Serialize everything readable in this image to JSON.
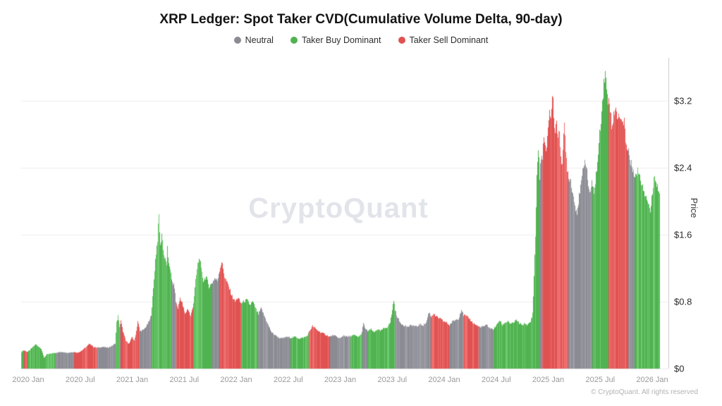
{
  "title": "XRP Ledger: Spot Taker CVD(Cumulative Volume Delta, 90-day)",
  "watermark": "CryptoQuant",
  "copyright": "© CryptoQuant. All rights reserved",
  "legend": [
    {
      "label": "Neutral",
      "color": "#8b8b93"
    },
    {
      "label": "Taker Buy Dominant",
      "color": "#50b250"
    },
    {
      "label": "Taker Sell Dominant",
      "color": "#e05252"
    }
  ],
  "y_axis": {
    "label": "Price",
    "ticks": [
      "$3.2",
      "$2.4",
      "$1.6",
      "$0.8",
      "$0"
    ],
    "tick_values": [
      3.2,
      2.4,
      1.6,
      0.8,
      0
    ]
  },
  "x_axis": {
    "ticks": [
      "2020 Jan",
      "2020 Jul",
      "2021 Jan",
      "2021 Jul",
      "2022 Jan",
      "2022 Jul",
      "2023 Jan",
      "2023 Jul",
      "2024 Jan",
      "2024 Jul",
      "2025 Jan",
      "2025 Jul",
      "2026 Jan"
    ]
  },
  "chart_data": {
    "type": "bar",
    "title": "XRP Ledger: Spot Taker CVD(Cumulative Volume Delta, 90-day)",
    "xlabel": "",
    "ylabel": "Price",
    "ylim": [
      0,
      3.7
    ],
    "x_range_decimal_years": [
      2019.93,
      2026.07
    ],
    "grid": true,
    "legend_position": "top-center",
    "unit": "USD",
    "regime_colors": {
      "N": {
        "base": "#8b8b93",
        "light": "#9d9da5"
      },
      "B": {
        "base": "#50b250",
        "light": "#6fca6f"
      },
      "S": {
        "base": "#e05252",
        "light": "#ee6f6f"
      }
    },
    "regime_legend": {
      "N": "Neutral",
      "B": "Taker Buy Dominant",
      "S": "Taker Sell Dominant"
    },
    "samples_format": [
      "time_decimal_year",
      "price_usd",
      "regime"
    ],
    "samples": [
      [
        2019.932,
        0.2,
        "B"
      ],
      [
        2019.953,
        0.22,
        "S"
      ],
      [
        2019.973,
        0.21,
        "S"
      ],
      [
        2019.993,
        0.2,
        "B"
      ],
      [
        2020.027,
        0.24,
        "B"
      ],
      [
        2020.068,
        0.29,
        "B"
      ],
      [
        2020.102,
        0.26,
        "B"
      ],
      [
        2020.122,
        0.24,
        "B"
      ],
      [
        2020.149,
        0.13,
        "B"
      ],
      [
        2020.176,
        0.17,
        "B"
      ],
      [
        2020.217,
        0.18,
        "B"
      ],
      [
        2020.258,
        0.19,
        "N"
      ],
      [
        2020.325,
        0.2,
        "N"
      ],
      [
        2020.38,
        0.19,
        "N"
      ],
      [
        2020.434,
        0.2,
        "S"
      ],
      [
        2020.475,
        0.19,
        "S"
      ],
      [
        2020.515,
        0.22,
        "S"
      ],
      [
        2020.556,
        0.26,
        "S"
      ],
      [
        2020.59,
        0.3,
        "S"
      ],
      [
        2020.624,
        0.26,
        "S"
      ],
      [
        2020.658,
        0.25,
        "N"
      ],
      [
        2020.712,
        0.26,
        "N"
      ],
      [
        2020.759,
        0.25,
        "N"
      ],
      [
        2020.8,
        0.27,
        "N"
      ],
      [
        2020.834,
        0.3,
        "B"
      ],
      [
        2020.847,
        0.55,
        "B"
      ],
      [
        2020.861,
        0.63,
        "B"
      ],
      [
        2020.875,
        0.5,
        "N"
      ],
      [
        2020.888,
        0.57,
        "S"
      ],
      [
        2020.908,
        0.45,
        "S"
      ],
      [
        2020.936,
        0.33,
        "S"
      ],
      [
        2020.969,
        0.3,
        "S"
      ],
      [
        2020.997,
        0.38,
        "S"
      ],
      [
        2021.017,
        0.33,
        "S"
      ],
      [
        2021.037,
        0.45,
        "S"
      ],
      [
        2021.051,
        0.57,
        "S"
      ],
      [
        2021.071,
        0.45,
        "N"
      ],
      [
        2021.105,
        0.46,
        "N"
      ],
      [
        2021.139,
        0.52,
        "N"
      ],
      [
        2021.166,
        0.58,
        "N"
      ],
      [
        2021.18,
        0.65,
        "B"
      ],
      [
        2021.2,
        0.95,
        "B"
      ],
      [
        2021.22,
        1.3,
        "B"
      ],
      [
        2021.241,
        1.55,
        "B"
      ],
      [
        2021.254,
        1.84,
        "B"
      ],
      [
        2021.268,
        1.45,
        "B"
      ],
      [
        2021.281,
        1.62,
        "B"
      ],
      [
        2021.302,
        1.35,
        "B"
      ],
      [
        2021.329,
        1.25,
        "B"
      ],
      [
        2021.336,
        1.45,
        "S"
      ],
      [
        2021.342,
        1.3,
        "B"
      ],
      [
        2021.363,
        1.2,
        "B"
      ],
      [
        2021.376,
        1.05,
        "N"
      ],
      [
        2021.403,
        0.98,
        "N"
      ],
      [
        2021.417,
        0.8,
        "S"
      ],
      [
        2021.437,
        0.72,
        "S"
      ],
      [
        2021.458,
        0.85,
        "S"
      ],
      [
        2021.478,
        0.78,
        "S"
      ],
      [
        2021.505,
        0.65,
        "S"
      ],
      [
        2021.532,
        0.72,
        "S"
      ],
      [
        2021.559,
        0.62,
        "S"
      ],
      [
        2021.586,
        0.78,
        "B"
      ],
      [
        2021.607,
        1.05,
        "B"
      ],
      [
        2021.627,
        1.25,
        "B"
      ],
      [
        2021.647,
        1.33,
        "B"
      ],
      [
        2021.661,
        1.18,
        "B"
      ],
      [
        2021.681,
        1.05,
        "B"
      ],
      [
        2021.708,
        1.1,
        "B"
      ],
      [
        2021.736,
        0.98,
        "B"
      ],
      [
        2021.763,
        1.02,
        "N"
      ],
      [
        2021.79,
        1.08,
        "N"
      ],
      [
        2021.817,
        1.05,
        "N"
      ],
      [
        2021.837,
        1.18,
        "S"
      ],
      [
        2021.858,
        1.28,
        "S"
      ],
      [
        2021.885,
        1.1,
        "S"
      ],
      [
        2021.919,
        1.0,
        "S"
      ],
      [
        2021.953,
        0.88,
        "S"
      ],
      [
        2021.986,
        0.8,
        "S"
      ],
      [
        2022.014,
        0.85,
        "S"
      ],
      [
        2022.041,
        0.78,
        "B"
      ],
      [
        2022.068,
        0.8,
        "B"
      ],
      [
        2022.102,
        0.82,
        "B"
      ],
      [
        2022.129,
        0.76,
        "B"
      ],
      [
        2022.156,
        0.8,
        "B"
      ],
      [
        2022.183,
        0.72,
        "B"
      ],
      [
        2022.21,
        0.65,
        "N"
      ],
      [
        2022.237,
        0.72,
        "N"
      ],
      [
        2022.271,
        0.62,
        "N"
      ],
      [
        2022.305,
        0.52,
        "N"
      ],
      [
        2022.339,
        0.43,
        "N"
      ],
      [
        2022.373,
        0.4,
        "N"
      ],
      [
        2022.407,
        0.37,
        "N"
      ],
      [
        2022.441,
        0.36,
        "N"
      ],
      [
        2022.481,
        0.38,
        "N"
      ],
      [
        2022.522,
        0.37,
        "B"
      ],
      [
        2022.563,
        0.38,
        "B"
      ],
      [
        2022.603,
        0.36,
        "B"
      ],
      [
        2022.644,
        0.37,
        "B"
      ],
      [
        2022.678,
        0.39,
        "B"
      ],
      [
        2022.698,
        0.44,
        "S"
      ],
      [
        2022.732,
        0.51,
        "S"
      ],
      [
        2022.766,
        0.47,
        "S"
      ],
      [
        2022.8,
        0.44,
        "S"
      ],
      [
        2022.834,
        0.42,
        "S"
      ],
      [
        2022.868,
        0.4,
        "S"
      ],
      [
        2022.895,
        0.38,
        "N"
      ],
      [
        2022.929,
        0.4,
        "N"
      ],
      [
        2022.963,
        0.38,
        "N"
      ],
      [
        2022.997,
        0.36,
        "N"
      ],
      [
        2023.031,
        0.4,
        "N"
      ],
      [
        2023.064,
        0.38,
        "N"
      ],
      [
        2023.098,
        0.39,
        "B"
      ],
      [
        2023.132,
        0.4,
        "B"
      ],
      [
        2023.166,
        0.38,
        "B"
      ],
      [
        2023.193,
        0.4,
        "B"
      ],
      [
        2023.207,
        0.44,
        "N"
      ],
      [
        2023.22,
        0.54,
        "N"
      ],
      [
        2023.241,
        0.47,
        "N"
      ],
      [
        2023.261,
        0.45,
        "B"
      ],
      [
        2023.295,
        0.47,
        "B"
      ],
      [
        2023.322,
        0.43,
        "B"
      ],
      [
        2023.349,
        0.47,
        "B"
      ],
      [
        2023.383,
        0.45,
        "B"
      ],
      [
        2023.417,
        0.48,
        "B"
      ],
      [
        2023.451,
        0.5,
        "B"
      ],
      [
        2023.478,
        0.55,
        "B"
      ],
      [
        2023.498,
        0.7,
        "B"
      ],
      [
        2023.512,
        0.83,
        "B"
      ],
      [
        2023.525,
        0.7,
        "N"
      ],
      [
        2023.546,
        0.62,
        "N"
      ],
      [
        2023.573,
        0.55,
        "N"
      ],
      [
        2023.607,
        0.52,
        "N"
      ],
      [
        2023.647,
        0.5,
        "N"
      ],
      [
        2023.688,
        0.52,
        "N"
      ],
      [
        2023.729,
        0.5,
        "N"
      ],
      [
        2023.763,
        0.53,
        "N"
      ],
      [
        2023.797,
        0.52,
        "N"
      ],
      [
        2023.824,
        0.55,
        "N"
      ],
      [
        2023.851,
        0.68,
        "N"
      ],
      [
        2023.871,
        0.62,
        "S"
      ],
      [
        2023.892,
        0.66,
        "S"
      ],
      [
        2023.919,
        0.62,
        "S"
      ],
      [
        2023.953,
        0.6,
        "S"
      ],
      [
        2023.986,
        0.57,
        "S"
      ],
      [
        2024.02,
        0.55,
        "S"
      ],
      [
        2024.047,
        0.52,
        "N"
      ],
      [
        2024.075,
        0.56,
        "N"
      ],
      [
        2024.102,
        0.58,
        "N"
      ],
      [
        2024.136,
        0.6,
        "N"
      ],
      [
        2024.163,
        0.71,
        "N"
      ],
      [
        2024.183,
        0.64,
        "S"
      ],
      [
        2024.203,
        0.63,
        "S"
      ],
      [
        2024.237,
        0.6,
        "S"
      ],
      [
        2024.271,
        0.55,
        "S"
      ],
      [
        2024.305,
        0.52,
        "S"
      ],
      [
        2024.332,
        0.5,
        "N"
      ],
      [
        2024.366,
        0.5,
        "N"
      ],
      [
        2024.407,
        0.52,
        "N"
      ],
      [
        2024.441,
        0.48,
        "N"
      ],
      [
        2024.468,
        0.47,
        "B"
      ],
      [
        2024.502,
        0.52,
        "B"
      ],
      [
        2024.529,
        0.58,
        "B"
      ],
      [
        2024.556,
        0.52,
        "B"
      ],
      [
        2024.583,
        0.55,
        "B"
      ],
      [
        2024.61,
        0.57,
        "B"
      ],
      [
        2024.637,
        0.53,
        "B"
      ],
      [
        2024.664,
        0.55,
        "B"
      ],
      [
        2024.692,
        0.58,
        "B"
      ],
      [
        2024.719,
        0.54,
        "B"
      ],
      [
        2024.746,
        0.52,
        "B"
      ],
      [
        2024.773,
        0.54,
        "B"
      ],
      [
        2024.8,
        0.52,
        "B"
      ],
      [
        2024.827,
        0.56,
        "B"
      ],
      [
        2024.847,
        0.65,
        "B"
      ],
      [
        2024.861,
        1.1,
        "B"
      ],
      [
        2024.875,
        1.6,
        "B"
      ],
      [
        2024.888,
        2.3,
        "B"
      ],
      [
        2024.902,
        2.65,
        "B"
      ],
      [
        2024.915,
        2.3,
        "N"
      ],
      [
        2024.929,
        2.5,
        "N"
      ],
      [
        2024.942,
        2.55,
        "S"
      ],
      [
        2024.956,
        2.75,
        "S"
      ],
      [
        2024.976,
        2.55,
        "S"
      ],
      [
        2024.997,
        2.9,
        "S"
      ],
      [
        2025.01,
        3.1,
        "S"
      ],
      [
        2025.024,
        2.95,
        "S"
      ],
      [
        2025.037,
        3.3,
        "S"
      ],
      [
        2025.051,
        3.05,
        "S"
      ],
      [
        2025.064,
        2.8,
        "S"
      ],
      [
        2025.078,
        3.0,
        "S"
      ],
      [
        2025.092,
        2.7,
        "S"
      ],
      [
        2025.105,
        2.85,
        "S"
      ],
      [
        2025.119,
        2.55,
        "S"
      ],
      [
        2025.132,
        2.45,
        "S"
      ],
      [
        2025.153,
        2.9,
        "S"
      ],
      [
        2025.166,
        2.6,
        "S"
      ],
      [
        2025.18,
        2.4,
        "S"
      ],
      [
        2025.193,
        2.3,
        "N"
      ],
      [
        2025.214,
        2.25,
        "N"
      ],
      [
        2025.234,
        2.1,
        "N"
      ],
      [
        2025.254,
        1.95,
        "N"
      ],
      [
        2025.275,
        1.88,
        "N"
      ],
      [
        2025.295,
        2.05,
        "N"
      ],
      [
        2025.315,
        2.2,
        "N"
      ],
      [
        2025.336,
        2.45,
        "N"
      ],
      [
        2025.356,
        2.5,
        "N"
      ],
      [
        2025.376,
        2.25,
        "N"
      ],
      [
        2025.397,
        2.1,
        "N"
      ],
      [
        2025.417,
        2.2,
        "B"
      ],
      [
        2025.437,
        2.1,
        "B"
      ],
      [
        2025.451,
        2.25,
        "B"
      ],
      [
        2025.471,
        2.45,
        "B"
      ],
      [
        2025.492,
        2.8,
        "B"
      ],
      [
        2025.512,
        3.1,
        "B"
      ],
      [
        2025.532,
        3.4,
        "B"
      ],
      [
        2025.546,
        3.58,
        "B"
      ],
      [
        2025.559,
        3.3,
        "B"
      ],
      [
        2025.573,
        3.2,
        "S"
      ],
      [
        2025.586,
        3.25,
        "S"
      ],
      [
        2025.6,
        3.0,
        "S"
      ],
      [
        2025.614,
        2.85,
        "S"
      ],
      [
        2025.627,
        3.05,
        "S"
      ],
      [
        2025.647,
        3.15,
        "S"
      ],
      [
        2025.668,
        2.95,
        "S"
      ],
      [
        2025.688,
        3.05,
        "S"
      ],
      [
        2025.708,
        2.9,
        "S"
      ],
      [
        2025.729,
        3.0,
        "S"
      ],
      [
        2025.742,
        2.75,
        "S"
      ],
      [
        2025.756,
        2.6,
        "S"
      ],
      [
        2025.769,
        2.62,
        "N"
      ],
      [
        2025.79,
        2.45,
        "N"
      ],
      [
        2025.81,
        2.4,
        "N"
      ],
      [
        2025.824,
        2.35,
        "B"
      ],
      [
        2025.844,
        2.3,
        "B"
      ],
      [
        2025.864,
        2.38,
        "B"
      ],
      [
        2025.885,
        2.25,
        "B"
      ],
      [
        2025.905,
        2.2,
        "B"
      ],
      [
        2025.925,
        2.1,
        "B"
      ],
      [
        2025.946,
        2.05,
        "B"
      ],
      [
        2025.966,
        1.95,
        "B"
      ],
      [
        2025.98,
        1.88,
        "B"
      ],
      [
        2026.0,
        2.1,
        "B"
      ],
      [
        2026.02,
        2.35,
        "B"
      ],
      [
        2026.041,
        2.2,
        "B"
      ],
      [
        2026.068,
        2.1,
        "B"
      ]
    ]
  }
}
